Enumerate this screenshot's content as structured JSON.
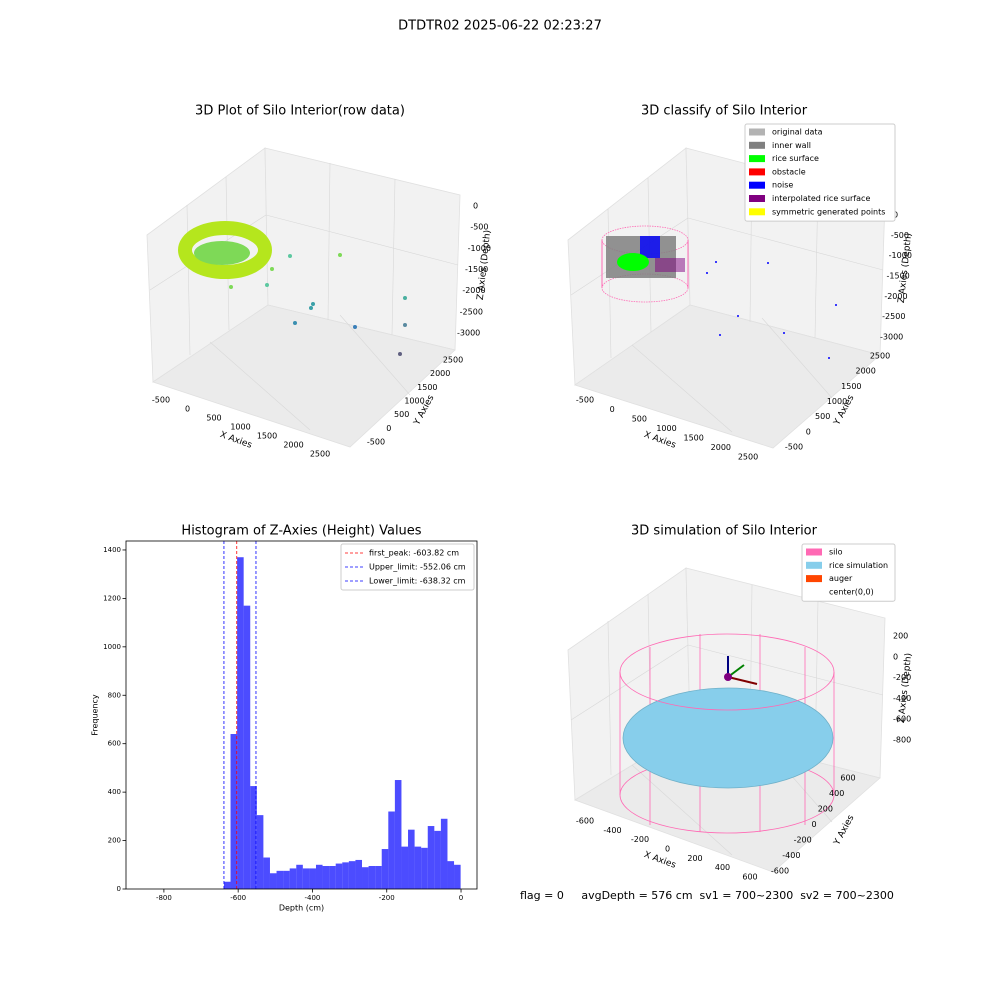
{
  "title": "DTDTR02 2025-06-22 02:23:27",
  "footer": "flag = 0     avgDepth = 576 cm  sv1 = 700~2300  sv2 = 700~2300",
  "chart_data": [
    {
      "type": "scatter3d",
      "title": "3D Plot of Silo Interior(row data)",
      "xlabel": "X Axies",
      "ylabel": "Y Axies",
      "zlabel": "Z Axies (Depth)",
      "xticks": [
        -500,
        0,
        500,
        1000,
        1500,
        2000,
        2500
      ],
      "yticks": [
        -500,
        0,
        500,
        1000,
        1500,
        2000,
        2500
      ],
      "zticks": [
        0,
        -500,
        -1000,
        -1500,
        -2000,
        -2500,
        -3000
      ]
    },
    {
      "type": "scatter3d",
      "title": "3D classify of Silo Interior",
      "xlabel": "X Axies",
      "ylabel": "Y Axies",
      "zlabel": "Z Axies (Depth)",
      "xticks": [
        -500,
        0,
        500,
        1000,
        1500,
        2000,
        2500
      ],
      "yticks": [
        -500,
        0,
        500,
        1000,
        1500,
        2000,
        2500
      ],
      "zticks": [
        0,
        -500,
        -1000,
        -1500,
        -2000,
        -2500,
        -3000
      ],
      "legend": [
        {
          "name": "original data",
          "color": "#b3b3b3"
        },
        {
          "name": "inner wall",
          "color": "#808080"
        },
        {
          "name": "rice surface",
          "color": "#00ff00"
        },
        {
          "name": "obstacle",
          "color": "#ff0000"
        },
        {
          "name": "noise",
          "color": "#0000ff"
        },
        {
          "name": "interpolated rice surface",
          "color": "#800080"
        },
        {
          "name": "symmetric generated points",
          "color": "#ffff00"
        }
      ]
    },
    {
      "type": "histogram",
      "title": "Histogram of Z-Axies (Height) Values",
      "xlabel": "Depth (cm)",
      "ylabel": "Frequency",
      "color": "#0000ff",
      "bins": [
        -638.3,
        -620.6,
        -602.9,
        -585.2,
        -567.5,
        -549.8,
        -532.1,
        -514.4,
        -496.7,
        -479.0,
        -461.3,
        -443.6,
        -425.9,
        -408.2,
        -390.5,
        -372.8,
        -355.1,
        -337.4,
        -319.7,
        -302.0,
        -284.3,
        -266.6,
        -248.9,
        -231.2,
        -213.5,
        -195.8,
        -178.1,
        -160.4,
        -142.7,
        -125.0,
        -107.3,
        -89.6,
        -71.9,
        -54.2,
        -36.5,
        -18.8,
        -1.1
      ],
      "values": [
        30,
        640,
        1370,
        1170,
        425,
        305,
        130,
        65,
        75,
        75,
        85,
        100,
        85,
        85,
        100,
        95,
        95,
        105,
        110,
        115,
        120,
        90,
        95,
        95,
        165,
        320,
        450,
        175,
        245,
        175,
        170,
        260,
        240,
        290,
        115,
        100
      ],
      "xlim": [
        -902,
        43
      ],
      "ylim": [
        0,
        1437
      ],
      "xticks": [
        -800,
        -600,
        -400,
        -200,
        0
      ],
      "yticks": [
        0,
        200,
        400,
        600,
        800,
        1000,
        1200,
        1400
      ],
      "vlines": [
        {
          "name": "first_peak: -603.82 cm",
          "value": -603.82,
          "color": "#ff0000"
        },
        {
          "name": "Upper_limit: -552.06 cm",
          "value": -552.06,
          "color": "#0000ff"
        },
        {
          "name": "Lower_limit: -638.32 cm",
          "value": -638.32,
          "color": "#0000ff"
        }
      ]
    },
    {
      "type": "surface3d",
      "title": "3D simulation of Silo Interior",
      "xlabel": "X Axies",
      "ylabel": "Y Axies",
      "zlabel": "Z Axies (Depth)",
      "xticks": [
        -600,
        -400,
        -200,
        0,
        200,
        400,
        600
      ],
      "yticks": [
        -600,
        -400,
        -200,
        0,
        200,
        400,
        600
      ],
      "zticks": [
        200,
        0,
        -200,
        -400,
        -600,
        -800
      ],
      "legend": [
        {
          "name": "silo",
          "color": "#ff69b4"
        },
        {
          "name": "rice simulation",
          "color": "#87ceeb"
        },
        {
          "name": "auger",
          "color": "#ff4500"
        },
        {
          "name": "center(0,0)",
          "color": "#ffffff"
        }
      ]
    }
  ]
}
